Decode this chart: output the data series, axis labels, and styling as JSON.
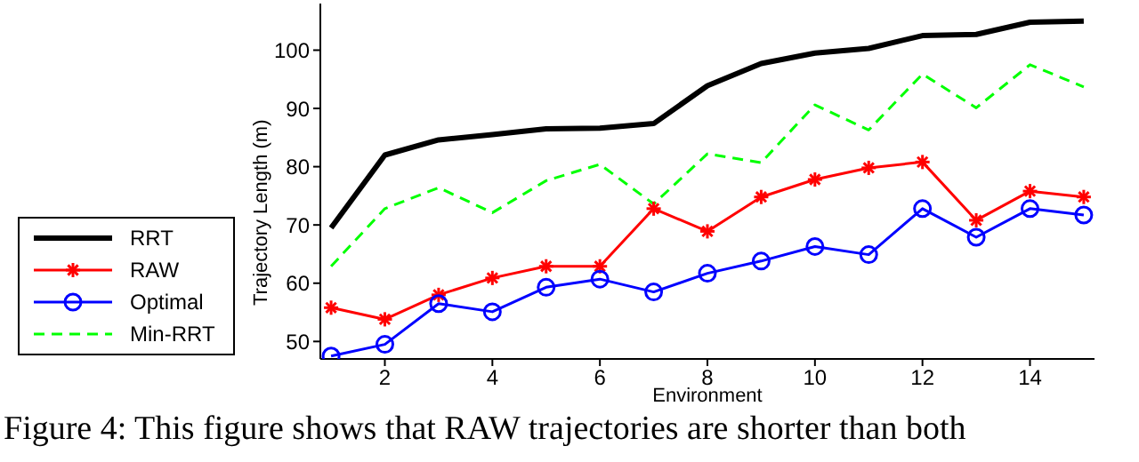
{
  "chart_data": {
    "type": "line",
    "xlabel": "Environment",
    "ylabel": "Trajectory Length (m)",
    "x": [
      1,
      2,
      3,
      4,
      5,
      6,
      7,
      8,
      9,
      10,
      11,
      12,
      13,
      14,
      15
    ],
    "series": [
      {
        "name": "RRT",
        "color": "#000000",
        "marker": "none",
        "line_style": "solid",
        "values": [
          69.5,
          82,
          84.6,
          85.5,
          86.5,
          86.6,
          87.4,
          93.9,
          97.7,
          99.5,
          100.3,
          102.5,
          102.7,
          104.8,
          105
        ]
      },
      {
        "name": "RAW",
        "color": "#ff0000",
        "marker": "cross",
        "line_style": "solid",
        "values": [
          55.8,
          53.8,
          58,
          60.9,
          62.9,
          62.9,
          72.8,
          68.9,
          74.8,
          77.8,
          79.8,
          80.8,
          70.8,
          75.8,
          74.8
        ]
      },
      {
        "name": "Optimal",
        "color": "#0000ff",
        "marker": "circle",
        "line_style": "solid",
        "values": [
          47.5,
          49.5,
          56.5,
          55.1,
          59.3,
          60.7,
          58.5,
          61.7,
          63.8,
          66.3,
          64.9,
          72.8,
          67.9,
          72.8,
          71.7
        ]
      },
      {
        "name": "Min-RRT",
        "color": "#00ff00",
        "marker": "none",
        "line_style": "dashed",
        "values": [
          62.9,
          72.8,
          76.4,
          72.1,
          77.6,
          80.4,
          73.6,
          82.2,
          80.7,
          90.6,
          86.3,
          95.9,
          90.1,
          97.5,
          93.7
        ]
      }
    ],
    "xlim": [
      0.8,
      15.2
    ],
    "xticks": [
      2,
      4,
      6,
      8,
      10,
      12,
      14
    ],
    "ylim": [
      47,
      108
    ],
    "yticks": [
      50,
      60,
      70,
      80,
      90,
      100
    ],
    "grid": false,
    "legend": "left",
    "annotations": [
      "Figure 4: This figure shows that RAW trajectories are shorter than both"
    ]
  }
}
